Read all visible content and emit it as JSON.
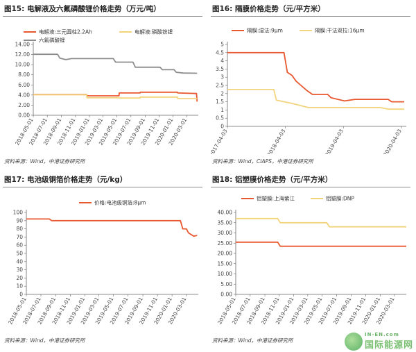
{
  "panels": [
    {
      "id": "p15",
      "title": "图15: 电解液及六氟磷酸锂价格走势（万元/吨）",
      "source": "资料来源：Wind，中港证券研究所"
    },
    {
      "id": "p16",
      "title": "图16: 隔膜价格走势（元/平方米）",
      "source": "资料来源：Wind，CIAPS，中港证券研究所"
    },
    {
      "id": "p17",
      "title": "图17: 电池级铜箔价格走势（元/kg）",
      "source": "资料来源：Wind，中港证券研究所"
    },
    {
      "id": "p18",
      "title": "图18: 铝塑膜价格走势（元/平方米）",
      "source": "资料来源：Wind，中港证券研究所"
    }
  ],
  "watermark": {
    "top": "IN-EN.com",
    "bottom": "国际能源网"
  },
  "colors": {
    "orange_red": "#e8572e",
    "yellow": "#f2d47c",
    "gray": "#8c8c8c"
  },
  "chart_data": [
    {
      "type": "line",
      "panel": "p15",
      "title": "",
      "x": [
        "2018-05-01",
        "2018-07-01",
        "2018-09-01",
        "2018-11-01",
        "2019-01-01",
        "2019-03-01",
        "2019-05-01",
        "2019-07-01",
        "2019-09-01",
        "2019-11-01",
        "2020-01-01",
        "2020-03-01"
      ],
      "xlim": [
        "2018-05-01",
        "2020-04-20"
      ],
      "ylim": [
        0,
        14
      ],
      "yticks": [
        "0.00",
        "2.00",
        "4.00",
        "6.00",
        "8.00",
        "10.00",
        "12.00",
        "14.00"
      ],
      "legend_position": "top",
      "series": [
        {
          "name": "电解液:三元圆柱2.2Ah",
          "color": "#e8572e",
          "points": [
            [
              "2018-05-01",
              4.1
            ],
            [
              "2018-12-20",
              4.1
            ],
            [
              "2018-12-21",
              3.85
            ],
            [
              "2019-05-10",
              3.85
            ],
            [
              "2019-05-11",
              4.4
            ],
            [
              "2019-08-10",
              4.4
            ],
            [
              "2019-08-11",
              4.55
            ],
            [
              "2020-01-20",
              4.55
            ],
            [
              "2020-01-21",
              4.4
            ],
            [
              "2020-04-12",
              4.3
            ],
            [
              "2020-04-15",
              2.7
            ]
          ]
        },
        {
          "name": "电解液:磷酸铁锂",
          "color": "#f2d47c",
          "points": [
            [
              "2018-05-01",
              4.05
            ],
            [
              "2018-12-20",
              4.05
            ],
            [
              "2018-12-21",
              3.45
            ],
            [
              "2019-05-10",
              3.45
            ],
            [
              "2019-05-11",
              3.4
            ],
            [
              "2019-08-10",
              3.4
            ],
            [
              "2019-08-11",
              3.6
            ],
            [
              "2020-01-20",
              3.6
            ],
            [
              "2020-01-21",
              3.3
            ],
            [
              "2020-04-15",
              3.3
            ]
          ]
        },
        {
          "name": "六氟磷酸锂",
          "color": "#8c8c8c",
          "points": [
            [
              "2018-05-01",
              12.05
            ],
            [
              "2018-08-15",
              12.05
            ],
            [
              "2018-08-25",
              11.3
            ],
            [
              "2018-09-20",
              11.0
            ],
            [
              "2018-10-15",
              11.2
            ],
            [
              "2019-04-15",
              11.2
            ],
            [
              "2019-04-25",
              10.5
            ],
            [
              "2019-07-10",
              10.5
            ],
            [
              "2019-07-20",
              9.5
            ],
            [
              "2019-11-05",
              9.5
            ],
            [
              "2019-11-15",
              9.0
            ],
            [
              "2020-01-05",
              9.0
            ],
            [
              "2020-01-15",
              8.5
            ],
            [
              "2020-02-15",
              8.35
            ],
            [
              "2020-04-15",
              8.3
            ]
          ]
        }
      ]
    },
    {
      "type": "line",
      "panel": "p16",
      "title": "",
      "x": [
        "2017-04-03",
        "2018-04-03",
        "2019-04-03",
        "2020-04-03"
      ],
      "xlim": [
        "2017-04-03",
        "2020-05-03"
      ],
      "ylim": [
        0,
        5
      ],
      "yticks": [
        "0",
        "0.5",
        "1",
        "1.5",
        "2",
        "2.5",
        "3",
        "3.5",
        "4",
        "4.5",
        "5"
      ],
      "legend_position": "top",
      "series": [
        {
          "name": "隔膜:湿法:9μm",
          "color": "#e8572e",
          "points": [
            [
              "2017-04-03",
              4.5
            ],
            [
              "2018-03-25",
              4.5
            ],
            [
              "2018-04-15",
              3.3
            ],
            [
              "2018-05-15",
              3.1
            ],
            [
              "2018-06-10",
              2.75
            ],
            [
              "2018-07-10",
              2.5
            ],
            [
              "2018-08-15",
              2.2
            ],
            [
              "2018-09-20",
              1.95
            ],
            [
              "2018-12-25",
              1.95
            ],
            [
              "2019-01-15",
              1.75
            ],
            [
              "2019-04-10",
              1.55
            ],
            [
              "2019-06-15",
              1.65
            ],
            [
              "2020-01-10",
              1.65
            ],
            [
              "2020-02-01",
              1.5
            ],
            [
              "2020-04-20",
              1.5
            ]
          ]
        },
        {
          "name": "隔膜:干法双拉:16μm",
          "color": "#f2d47c",
          "points": [
            [
              "2017-04-03",
              2.25
            ],
            [
              "2018-01-20",
              2.25
            ],
            [
              "2018-02-05",
              1.6
            ],
            [
              "2018-05-15",
              1.4
            ],
            [
              "2018-08-25",
              1.15
            ],
            [
              "2019-11-20",
              1.15
            ],
            [
              "2020-01-15",
              1.05
            ],
            [
              "2020-04-20",
              1.05
            ]
          ]
        }
      ]
    },
    {
      "type": "line",
      "panel": "p17",
      "title": "",
      "x": [
        "2018-05-01",
        "2018-07-01",
        "2018-09-01",
        "2018-11-01",
        "2019-01-01",
        "2019-03-01",
        "2019-05-01",
        "2019-07-01",
        "2019-09-01",
        "2019-11-01",
        "2020-01-01",
        "2020-03-01"
      ],
      "xlim": [
        "2018-05-01",
        "2020-04-20"
      ],
      "ylim": [
        0,
        100
      ],
      "yticks": [
        "0",
        "10",
        "20",
        "30",
        "40",
        "50",
        "60",
        "70",
        "80",
        "90",
        "100"
      ],
      "legend_position": "top",
      "series": [
        {
          "name": "价格:电池级铜箔:8μm",
          "color": "#e8572e",
          "points": [
            [
              "2018-05-01",
              92
            ],
            [
              "2018-08-05",
              92
            ],
            [
              "2018-08-15",
              90
            ],
            [
              "2020-02-05",
              90
            ],
            [
              "2020-02-15",
              80
            ],
            [
              "2020-03-01",
              80
            ],
            [
              "2020-03-10",
              75
            ],
            [
              "2020-04-01",
              71
            ],
            [
              "2020-04-15",
              72
            ]
          ]
        }
      ]
    },
    {
      "type": "line",
      "panel": "p18",
      "title": "",
      "x": [
        "2018-05-01",
        "2018-07-01",
        "2018-09-01",
        "2018-11-01",
        "2019-01-01",
        "2019-03-01",
        "2019-05-01",
        "2019-07-01",
        "2019-09-01",
        "2019-11-01",
        "2020-01-01",
        "2020-03-01"
      ],
      "xlim": [
        "2018-05-01",
        "2020-04-20"
      ],
      "ylim": [
        0,
        40
      ],
      "yticks": [
        "0.00",
        "5.00",
        "10.00",
        "15.00",
        "20.00",
        "25.00",
        "30.00",
        "35.00",
        "40.00"
      ],
      "legend_position": "top",
      "series": [
        {
          "name": "铝塑膜:上海紫江",
          "color": "#e8572e",
          "points": [
            [
              "2018-05-01",
              25.5
            ],
            [
              "2018-10-25",
              25.5
            ],
            [
              "2018-11-05",
              23.5
            ],
            [
              "2020-04-20",
              23.5
            ]
          ]
        },
        {
          "name": "铝塑膜:DNP",
          "color": "#f2d47c",
          "points": [
            [
              "2018-05-01",
              37
            ],
            [
              "2018-10-25",
              37
            ],
            [
              "2018-11-05",
              35
            ],
            [
              "2019-05-20",
              35
            ],
            [
              "2019-06-01",
              33
            ],
            [
              "2020-04-20",
              33
            ]
          ]
        }
      ]
    }
  ]
}
